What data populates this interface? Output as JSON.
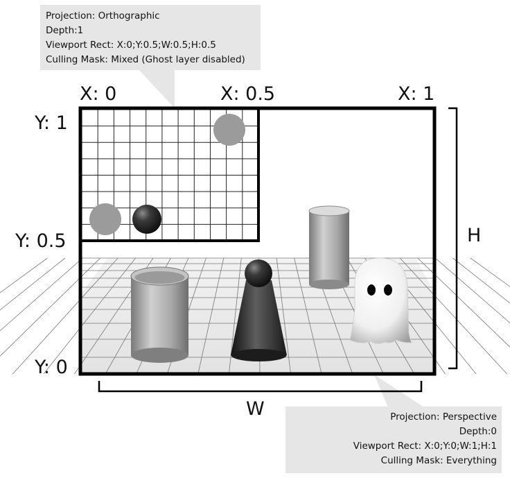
{
  "top_callout": {
    "lines": [
      "Projection: Orthographic",
      "Depth:1",
      "Viewport Rect: X:0;Y:0.5;W:0.5;H:0.5",
      "Culling Mask: Mixed (Ghost layer disabled)"
    ]
  },
  "bottom_callout": {
    "lines": [
      "Projection: Perspective",
      "Depth:0",
      "Viewport Rect: X:0;Y:0;W:1;H:1",
      "Culling Mask: Everything"
    ]
  },
  "x_labels": [
    "X: 0",
    "X: 0.5",
    "X: 1"
  ],
  "y_labels": [
    "Y: 1",
    "Y: 0.5",
    "Y: 0"
  ],
  "width_label": "W",
  "height_label": "H",
  "colors": {
    "callout_bg": "#e6e6e6",
    "frame": "#000000",
    "grid_line": "#222222",
    "grey_ball": "#9b9b9b",
    "dark_ball": "#2a2a2a"
  }
}
